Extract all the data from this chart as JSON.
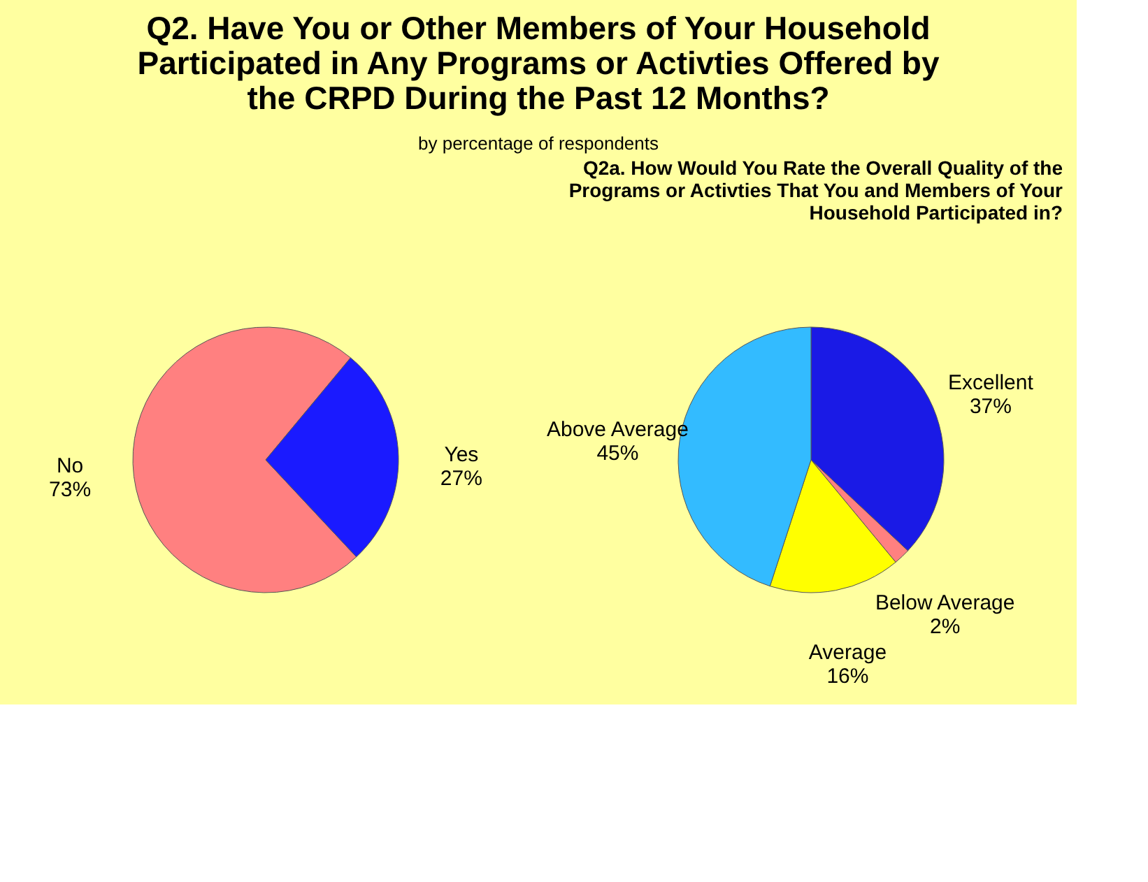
{
  "chart_data": [
    {
      "type": "pie",
      "title": "Q2. Have You or Other Members of Your Household Participated in Any Programs or Activties Offered by the CRPD During the Past 12 Months?",
      "subtitle": "by percentage of respondents",
      "categories": [
        "No",
        "Yes"
      ],
      "values": [
        73,
        27
      ],
      "colors": [
        "#ff8080",
        "#1a1aff"
      ],
      "value_labels": [
        "73%",
        "27%"
      ],
      "legend": false
    },
    {
      "type": "pie",
      "title": "Q2a. How Would You Rate the Overall Quality of the Programs or Activties That You and Members of Your Household Participated in?",
      "categories": [
        "Excellent",
        "Below Average",
        "Average",
        "Above Average"
      ],
      "values": [
        37,
        2,
        16,
        45
      ],
      "colors": [
        "#1a1ae6",
        "#ff8080",
        "#ffff00",
        "#33bbff"
      ],
      "value_labels": [
        "37%",
        "2%",
        "16%",
        "45%"
      ],
      "legend": false
    }
  ]
}
